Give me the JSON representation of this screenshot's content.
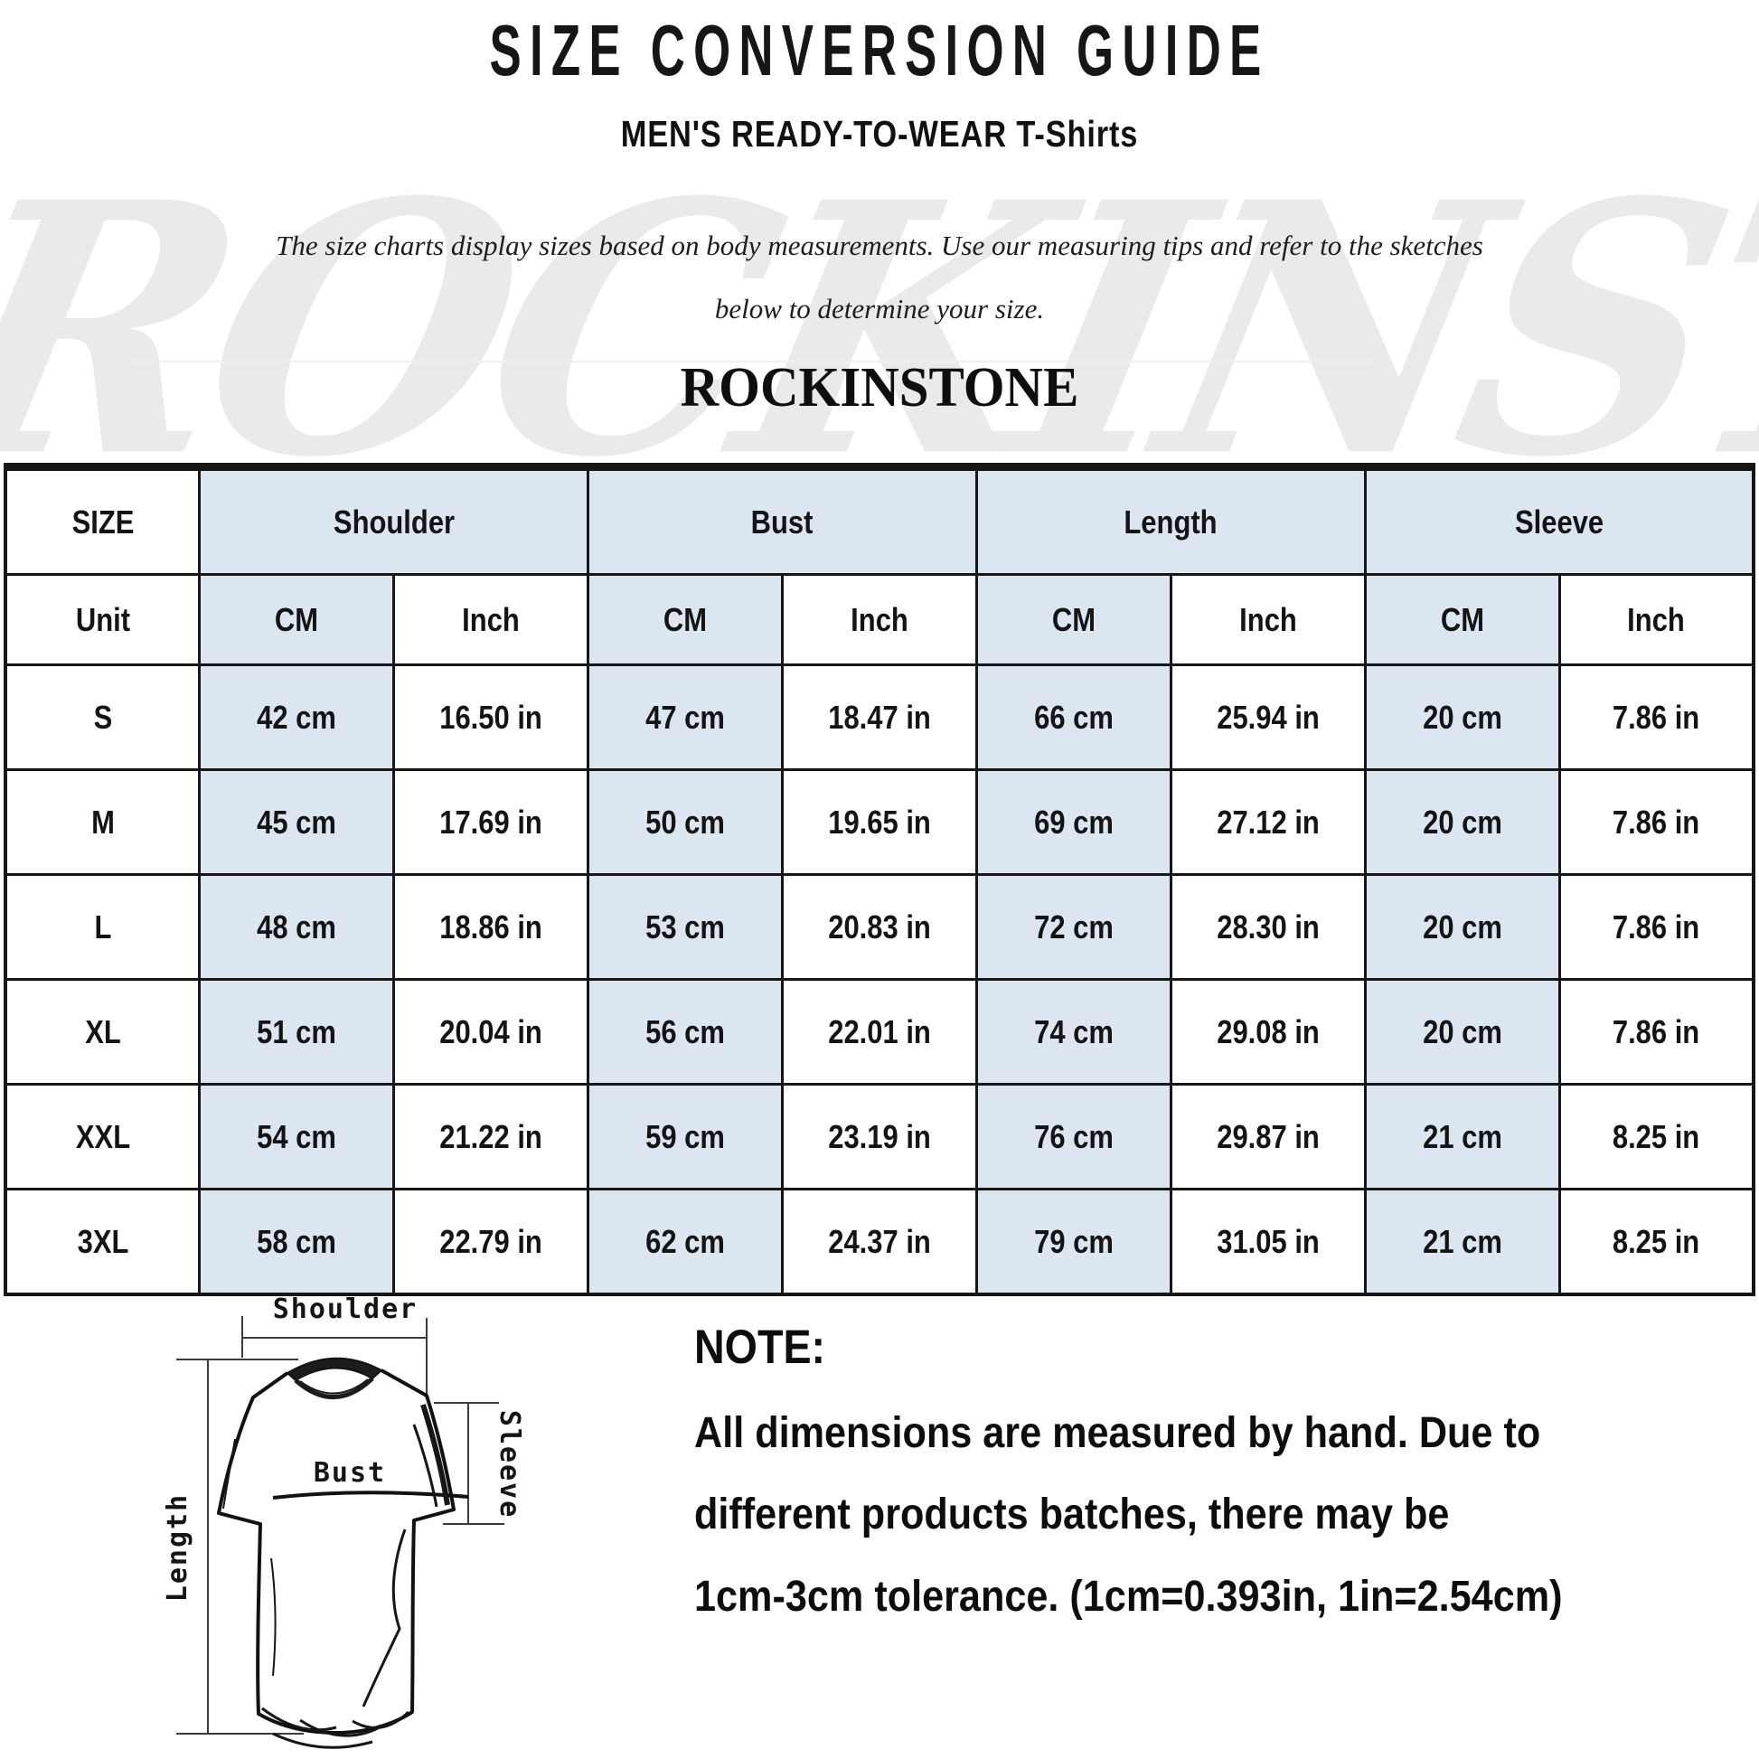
{
  "header": {
    "title": "SIZE CONVERSION GUIDE",
    "subtitle_category": "MEN'S READY-TO-WEAR",
    "subtitle_product": "T-Shirts",
    "description_line1": "The size charts display sizes based on body measurements.  Use our measuring tips and refer to the sketches",
    "description_line2": "below to determine your size.",
    "brand": "ROCKINSTONE",
    "watermark_text": "ROCKINSTONE"
  },
  "table": {
    "size_header": "SIZE",
    "unit_label": "Unit",
    "groups": [
      "Shoulder",
      "Bust",
      "Length",
      "Sleeve"
    ],
    "unit_columns": [
      "CM",
      "Inch"
    ],
    "rows": [
      {
        "size": "S",
        "values": [
          "42 cm",
          "16.50 in",
          "47 cm",
          "18.47 in",
          "66 cm",
          "25.94 in",
          "20 cm",
          "7.86 in"
        ]
      },
      {
        "size": "M",
        "values": [
          "45 cm",
          "17.69 in",
          "50 cm",
          "19.65 in",
          "69 cm",
          "27.12 in",
          "20 cm",
          "7.86 in"
        ]
      },
      {
        "size": "L",
        "values": [
          "48 cm",
          "18.86 in",
          "53 cm",
          "20.83 in",
          "72 cm",
          "28.30 in",
          "20 cm",
          "7.86 in"
        ]
      },
      {
        "size": "XL",
        "values": [
          "51 cm",
          "20.04 in",
          "56 cm",
          "22.01 in",
          "74 cm",
          "29.08 in",
          "20 cm",
          "7.86 in"
        ]
      },
      {
        "size": "XXL",
        "values": [
          "54 cm",
          "21.22 in",
          "59 cm",
          "23.19 in",
          "76 cm",
          "29.87 in",
          "21 cm",
          "8.25 in"
        ]
      },
      {
        "size": "3XL",
        "values": [
          "58 cm",
          "22.79 in",
          "62 cm",
          "24.37 in",
          "79 cm",
          "31.05 in",
          "21 cm",
          "8.25 in"
        ]
      }
    ]
  },
  "diagram": {
    "shoulder_label": "Shoulder",
    "bust_label": "Bust",
    "length_label": "Length",
    "sleeve_label": "Sleeve"
  },
  "note": {
    "heading": "NOTE:",
    "lines": [
      "All dimensions are measured by hand. Due to",
      "different products batches, there may be",
      "1cm-3cm tolerance. (1cm=0.393in, 1in=2.54cm)"
    ]
  },
  "colors": {
    "cell_blue": "#dce6f1",
    "table_border": "#161616",
    "watermark_gray": "#eaeaea"
  }
}
